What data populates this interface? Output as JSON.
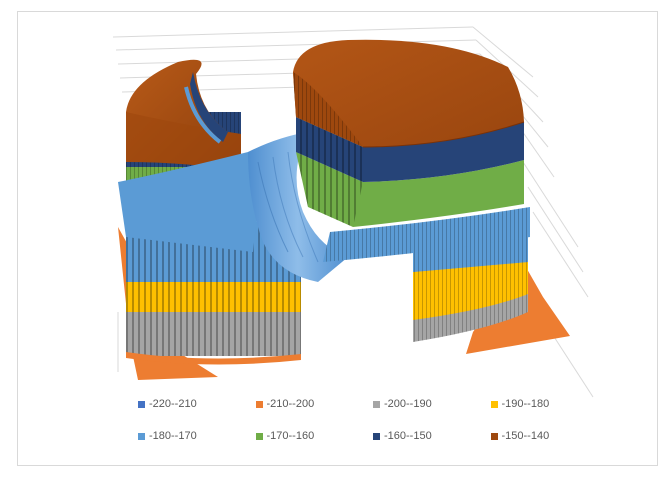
{
  "chart_data": {
    "type": "surface-3d",
    "title": "",
    "grid": true,
    "legend_position": "bottom",
    "series": [
      {
        "name": "-220--210",
        "range": [
          -220,
          -210
        ],
        "color": "#4472C4"
      },
      {
        "name": "-210--200",
        "range": [
          -210,
          -200
        ],
        "color": "#ED7D31"
      },
      {
        "name": "-200--190",
        "range": [
          -200,
          -190
        ],
        "color": "#A5A5A5"
      },
      {
        "name": "-190--180",
        "range": [
          -190,
          -180
        ],
        "color": "#FFC000"
      },
      {
        "name": "-180--170",
        "range": [
          -180,
          -170
        ],
        "color": "#5B9BD5"
      },
      {
        "name": "-170--160",
        "range": [
          -170,
          -160
        ],
        "color": "#70AD47"
      },
      {
        "name": "-160--150",
        "range": [
          -160,
          -150
        ],
        "color": "#264478"
      },
      {
        "name": "-150--140",
        "range": [
          -150,
          -140
        ],
        "color": "#9E480E"
      }
    ]
  }
}
